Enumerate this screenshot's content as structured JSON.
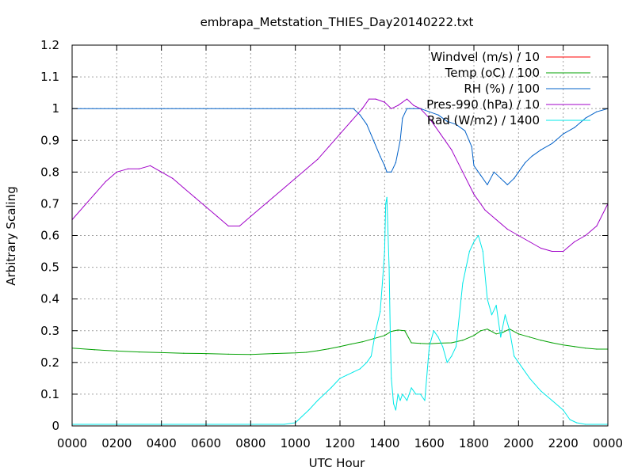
{
  "chart_data": {
    "type": "line",
    "title": "embrapa_Metstation_THIES_Day20140222.txt",
    "xlabel": "UTC Hour",
    "ylabel": "Arbitrary Scaling",
    "xlim": [
      0,
      24
    ],
    "ylim": [
      0,
      1.2
    ],
    "grid": true,
    "legend_position": "top-right",
    "x_ticks": [
      {
        "value": 0,
        "label": "0000"
      },
      {
        "value": 2,
        "label": "0200"
      },
      {
        "value": 4,
        "label": "0400"
      },
      {
        "value": 6,
        "label": "0600"
      },
      {
        "value": 8,
        "label": "0800"
      },
      {
        "value": 10,
        "label": "1000"
      },
      {
        "value": 12,
        "label": "1200"
      },
      {
        "value": 14,
        "label": "1400"
      },
      {
        "value": 16,
        "label": "1600"
      },
      {
        "value": 18,
        "label": "1800"
      },
      {
        "value": 20,
        "label": "2000"
      },
      {
        "value": 22,
        "label": "2200"
      },
      {
        "value": 24,
        "label": "0000"
      }
    ],
    "y_ticks": [
      {
        "value": 0,
        "label": "0"
      },
      {
        "value": 0.1,
        "label": "0.1"
      },
      {
        "value": 0.2,
        "label": "0.2"
      },
      {
        "value": 0.3,
        "label": "0.3"
      },
      {
        "value": 0.4,
        "label": "0.4"
      },
      {
        "value": 0.5,
        "label": "0.5"
      },
      {
        "value": 0.6,
        "label": "0.6"
      },
      {
        "value": 0.7,
        "label": "0.7"
      },
      {
        "value": 0.8,
        "label": "0.8"
      },
      {
        "value": 0.9,
        "label": "0.9"
      },
      {
        "value": 1.0,
        "label": "1"
      },
      {
        "value": 1.1,
        "label": "1.1"
      },
      {
        "value": 1.2,
        "label": "1.2"
      }
    ],
    "series": [
      {
        "name": "Windvel (m/s) / 10",
        "color": "#ff0000",
        "x": [],
        "y": []
      },
      {
        "name": "Temp (oC) / 100",
        "color": "#00a000",
        "x": [
          0,
          1,
          2,
          3,
          4,
          5,
          6,
          7,
          8,
          9,
          10,
          10.5,
          11,
          11.5,
          12,
          12.5,
          13,
          13.5,
          14,
          14.3,
          14.6,
          14.9,
          15.2,
          15.6,
          16,
          16.5,
          17,
          17.5,
          18,
          18.3,
          18.6,
          19,
          19.3,
          19.6,
          20,
          20.5,
          21,
          21.5,
          22,
          22.5,
          23,
          23.5,
          24
        ],
        "y": [
          0.245,
          0.24,
          0.236,
          0.233,
          0.231,
          0.229,
          0.228,
          0.226,
          0.225,
          0.228,
          0.23,
          0.232,
          0.237,
          0.243,
          0.25,
          0.258,
          0.265,
          0.275,
          0.285,
          0.298,
          0.302,
          0.3,
          0.262,
          0.26,
          0.259,
          0.261,
          0.262,
          0.27,
          0.285,
          0.3,
          0.305,
          0.29,
          0.295,
          0.305,
          0.29,
          0.28,
          0.27,
          0.262,
          0.255,
          0.25,
          0.245,
          0.242,
          0.242
        ]
      },
      {
        "name": "RH (%) / 100",
        "color": "#0060c8",
        "x": [
          0,
          4,
          8,
          12,
          12.6,
          12.9,
          13.2,
          13.5,
          13.8,
          14,
          14.1,
          14.3,
          14.5,
          14.7,
          14.8,
          15,
          15.3,
          15.6,
          16,
          16.4,
          16.8,
          17.2,
          17.6,
          17.9,
          18,
          18.3,
          18.6,
          18.9,
          19.2,
          19.5,
          19.8,
          20,
          20.3,
          20.6,
          21,
          21.5,
          22,
          22.5,
          23,
          23.5,
          24
        ],
        "y": [
          1.0,
          1.0,
          1.0,
          1.0,
          1.0,
          0.98,
          0.95,
          0.9,
          0.85,
          0.82,
          0.8,
          0.8,
          0.83,
          0.9,
          0.97,
          1.0,
          1.0,
          1.0,
          0.99,
          0.98,
          0.96,
          0.95,
          0.93,
          0.88,
          0.82,
          0.79,
          0.76,
          0.8,
          0.78,
          0.76,
          0.78,
          0.8,
          0.83,
          0.85,
          0.87,
          0.89,
          0.92,
          0.94,
          0.97,
          0.99,
          1.0
        ]
      },
      {
        "name": "Pres-990 (hPa) / 10",
        "color": "#a000c8",
        "x": [
          0,
          0.5,
          1,
          1.5,
          2,
          2.5,
          3,
          3.5,
          4,
          4.5,
          5,
          5.5,
          6,
          6.5,
          7,
          7.5,
          8,
          8.5,
          9,
          9.5,
          10,
          10.5,
          11,
          11.5,
          12,
          12.5,
          13,
          13.3,
          13.6,
          14,
          14.3,
          14.6,
          15,
          15.3,
          15.6,
          16,
          16.5,
          17,
          17.5,
          18,
          18.5,
          19,
          19.5,
          20,
          20.5,
          21,
          21.5,
          22,
          22.5,
          23,
          23.5,
          24
        ],
        "y": [
          0.65,
          0.69,
          0.73,
          0.77,
          0.8,
          0.81,
          0.81,
          0.82,
          0.8,
          0.78,
          0.75,
          0.72,
          0.69,
          0.66,
          0.63,
          0.63,
          0.66,
          0.69,
          0.72,
          0.75,
          0.78,
          0.81,
          0.84,
          0.88,
          0.92,
          0.96,
          1.0,
          1.03,
          1.03,
          1.02,
          1.0,
          1.01,
          1.03,
          1.01,
          1.0,
          0.97,
          0.92,
          0.87,
          0.8,
          0.73,
          0.68,
          0.65,
          0.62,
          0.6,
          0.58,
          0.56,
          0.55,
          0.55,
          0.58,
          0.6,
          0.63,
          0.7
        ]
      },
      {
        "name": "Rad (W/m2) / 1400",
        "color": "#00e8e8",
        "x": [
          0,
          9.5,
          10,
          10.3,
          10.6,
          11,
          11.3,
          11.6,
          12,
          12.3,
          12.6,
          12.9,
          13.2,
          13.4,
          13.6,
          13.8,
          13.9,
          14,
          14.05,
          14.1,
          14.2,
          14.25,
          14.3,
          14.4,
          14.5,
          14.6,
          14.7,
          14.8,
          15,
          15.2,
          15.4,
          15.6,
          15.8,
          16,
          16.2,
          16.4,
          16.6,
          16.8,
          17,
          17.2,
          17.5,
          17.8,
          18,
          18.2,
          18.4,
          18.6,
          18.8,
          19,
          19.2,
          19.4,
          19.6,
          19.8,
          20,
          20.2,
          20.5,
          21,
          21.5,
          22,
          22.3,
          22.6,
          23,
          24
        ],
        "y": [
          0.005,
          0.005,
          0.01,
          0.03,
          0.05,
          0.08,
          0.1,
          0.12,
          0.15,
          0.16,
          0.17,
          0.18,
          0.2,
          0.22,
          0.3,
          0.36,
          0.45,
          0.55,
          0.7,
          0.72,
          0.5,
          0.3,
          0.15,
          0.07,
          0.05,
          0.1,
          0.08,
          0.1,
          0.08,
          0.12,
          0.1,
          0.1,
          0.08,
          0.25,
          0.3,
          0.28,
          0.25,
          0.2,
          0.22,
          0.25,
          0.45,
          0.55,
          0.58,
          0.6,
          0.55,
          0.4,
          0.35,
          0.38,
          0.28,
          0.35,
          0.3,
          0.22,
          0.2,
          0.18,
          0.15,
          0.11,
          0.08,
          0.05,
          0.02,
          0.01,
          0.005,
          0.005
        ]
      }
    ]
  }
}
